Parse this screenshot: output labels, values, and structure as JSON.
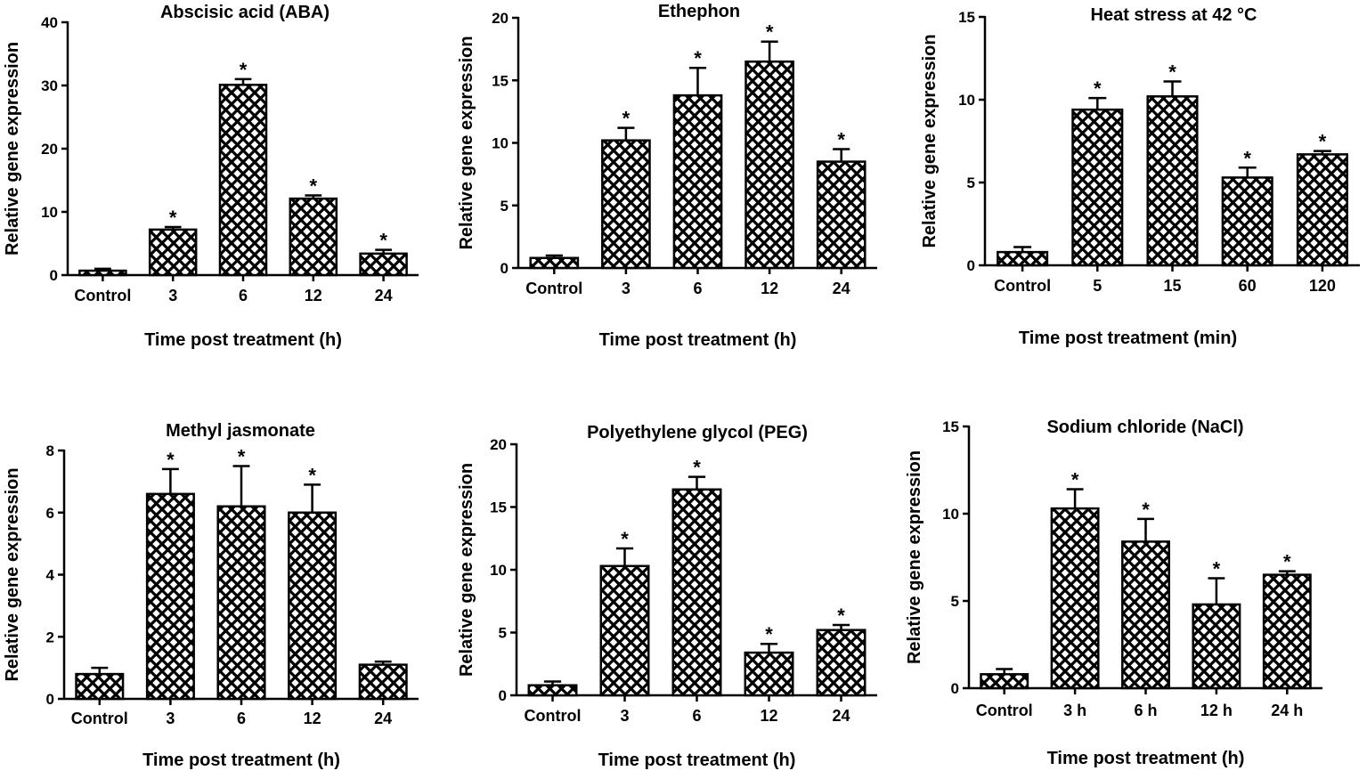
{
  "chart_data": [
    {
      "type": "bar",
      "title": "Abscisic acid (ABA)",
      "xlabel": "Time post treatment (h)",
      "ylabel": "Relative gene expression",
      "categories": [
        "Control",
        "3",
        "6",
        "12",
        "24"
      ],
      "values": [
        0.7,
        7.2,
        30.1,
        12.1,
        3.4
      ],
      "errors": [
        0.3,
        0.4,
        0.9,
        0.5,
        0.6
      ],
      "significant": [
        false,
        true,
        true,
        true,
        true
      ],
      "significance_marker": "*",
      "ylim": [
        0,
        40
      ],
      "yticks": [
        0,
        10,
        20,
        30,
        40
      ],
      "ytick_labels": [
        "0",
        "10",
        "20",
        "30",
        "40"
      ]
    },
    {
      "type": "bar",
      "title": "Ethephon",
      "xlabel": "Time post treatment (h)",
      "ylabel": "Relative gene expression",
      "categories": [
        "Control",
        "3",
        "6",
        "12",
        "24"
      ],
      "values": [
        0.8,
        10.2,
        13.8,
        16.5,
        8.5
      ],
      "errors": [
        0.2,
        1.0,
        2.2,
        1.6,
        1.0
      ],
      "significant": [
        false,
        true,
        true,
        true,
        true
      ],
      "significance_marker": "*",
      "ylim": [
        0,
        20
      ],
      "yticks": [
        0,
        5,
        10,
        15,
        20
      ],
      "ytick_labels": [
        "0",
        "5",
        "10",
        "15",
        "20"
      ]
    },
    {
      "type": "bar",
      "title": "Heat stress at 42 °C",
      "xlabel": "Time post treatment (min)",
      "ylabel": "Relative gene expression",
      "categories": [
        "Control",
        "5",
        "15",
        "60",
        "120"
      ],
      "values": [
        0.8,
        9.4,
        10.2,
        5.3,
        6.7
      ],
      "errors": [
        0.3,
        0.7,
        0.9,
        0.6,
        0.2
      ],
      "significant": [
        false,
        true,
        true,
        true,
        true
      ],
      "significance_marker": "*",
      "ylim": [
        0,
        15
      ],
      "yticks": [
        0,
        5,
        10,
        15
      ],
      "ytick_labels": [
        "0",
        "5",
        "10",
        "15"
      ]
    },
    {
      "type": "bar",
      "title": "Methyl jasmonate",
      "xlabel": "Time post treatment (h)",
      "ylabel": "Relative gene expression",
      "categories": [
        "Control",
        "3",
        "6",
        "12",
        "24"
      ],
      "values": [
        0.8,
        6.6,
        6.2,
        6.0,
        1.1
      ],
      "errors": [
        0.2,
        0.8,
        1.3,
        0.9,
        0.1
      ],
      "significant": [
        false,
        true,
        true,
        true,
        false
      ],
      "significance_marker": "*",
      "ylim": [
        0,
        8
      ],
      "yticks": [
        0,
        2,
        4,
        6,
        8
      ],
      "ytick_labels": [
        "0",
        "2",
        "4",
        "6",
        "8"
      ]
    },
    {
      "type": "bar",
      "title": "Polyethylene glycol (PEG)",
      "xlabel": "Time post treatment (h)",
      "ylabel": "Relative gene expression",
      "categories": [
        "Control",
        "3",
        "6",
        "12",
        "24"
      ],
      "values": [
        0.8,
        10.3,
        16.4,
        3.4,
        5.2
      ],
      "errors": [
        0.3,
        1.4,
        1.0,
        0.7,
        0.4
      ],
      "significant": [
        false,
        true,
        true,
        true,
        true
      ],
      "significance_marker": "*",
      "ylim": [
        0,
        20
      ],
      "yticks": [
        0,
        5,
        10,
        15,
        20
      ],
      "ytick_labels": [
        "0",
        "5",
        "10",
        "15",
        "20"
      ]
    },
    {
      "type": "bar",
      "title": "Sodium chloride (NaCl)",
      "xlabel": "Time post treatment (h)",
      "ylabel": "Relative gene expression",
      "categories": [
        "Control",
        "3 h",
        "6 h",
        "12 h",
        "24 h"
      ],
      "values": [
        0.8,
        10.3,
        8.4,
        4.8,
        6.5
      ],
      "errors": [
        0.3,
        1.1,
        1.3,
        1.5,
        0.2
      ],
      "significant": [
        false,
        true,
        true,
        true,
        true
      ],
      "significance_marker": "*",
      "ylim": [
        0,
        15
      ],
      "yticks": [
        0,
        5,
        10,
        15
      ],
      "ytick_labels": [
        "0",
        "5",
        "10",
        "15"
      ]
    }
  ],
  "colors": {
    "bar_fill": "#ffffff",
    "bar_hatch": "#000000",
    "axis": "#000000",
    "text": "#000000"
  }
}
